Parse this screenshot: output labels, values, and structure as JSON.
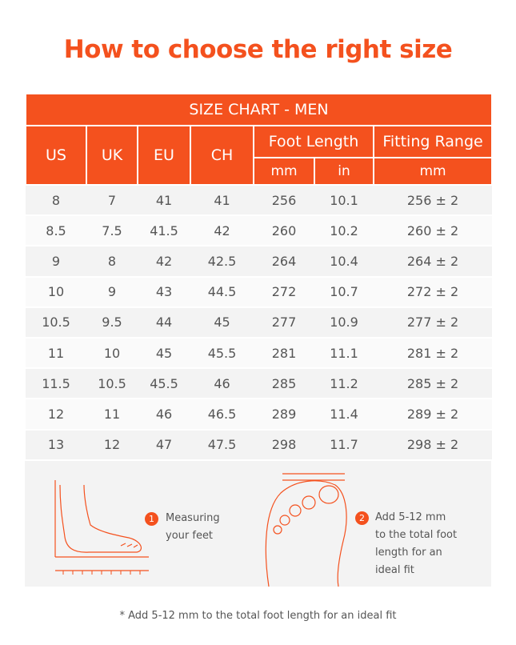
{
  "title": "How to choose the right size",
  "table": {
    "caption": "SIZE CHART - MEN",
    "size_headers": [
      "US",
      "UK",
      "EU",
      "CH"
    ],
    "foot_length": {
      "label": "Foot Length",
      "units": [
        "mm",
        "in"
      ]
    },
    "fitting_range": {
      "label": "Fitting Range",
      "unit": "mm"
    },
    "rows": [
      [
        "8",
        "7",
        "41",
        "41",
        "256",
        "10.1",
        "256 ± 2"
      ],
      [
        "8.5",
        "7.5",
        "41.5",
        "42",
        "260",
        "10.2",
        "260 ± 2"
      ],
      [
        "9",
        "8",
        "42",
        "42.5",
        "264",
        "10.4",
        "264 ± 2"
      ],
      [
        "10",
        "9",
        "43",
        "44.5",
        "272",
        "10.7",
        "272 ± 2"
      ],
      [
        "10.5",
        "9.5",
        "44",
        "45",
        "277",
        "10.9",
        "277 ± 2"
      ],
      [
        "11",
        "10",
        "45",
        "45.5",
        "281",
        "11.1",
        "281 ± 2"
      ],
      [
        "11.5",
        "10.5",
        "45.5",
        "46",
        "285",
        "11.2",
        "285 ± 2"
      ],
      [
        "12",
        "11",
        "46",
        "46.5",
        "289",
        "11.4",
        "289 ± 2"
      ],
      [
        "13",
        "12",
        "47",
        "47.5",
        "298",
        "11.7",
        "298 ± 2"
      ]
    ]
  },
  "steps": [
    {
      "number": "1",
      "text": "Measuring your feet"
    },
    {
      "number": "2",
      "text": "Add 5-12 mm to the total foot length for an ideal fit"
    }
  ],
  "footnote": "* Add 5-12 mm to the total foot length for an ideal fit"
}
